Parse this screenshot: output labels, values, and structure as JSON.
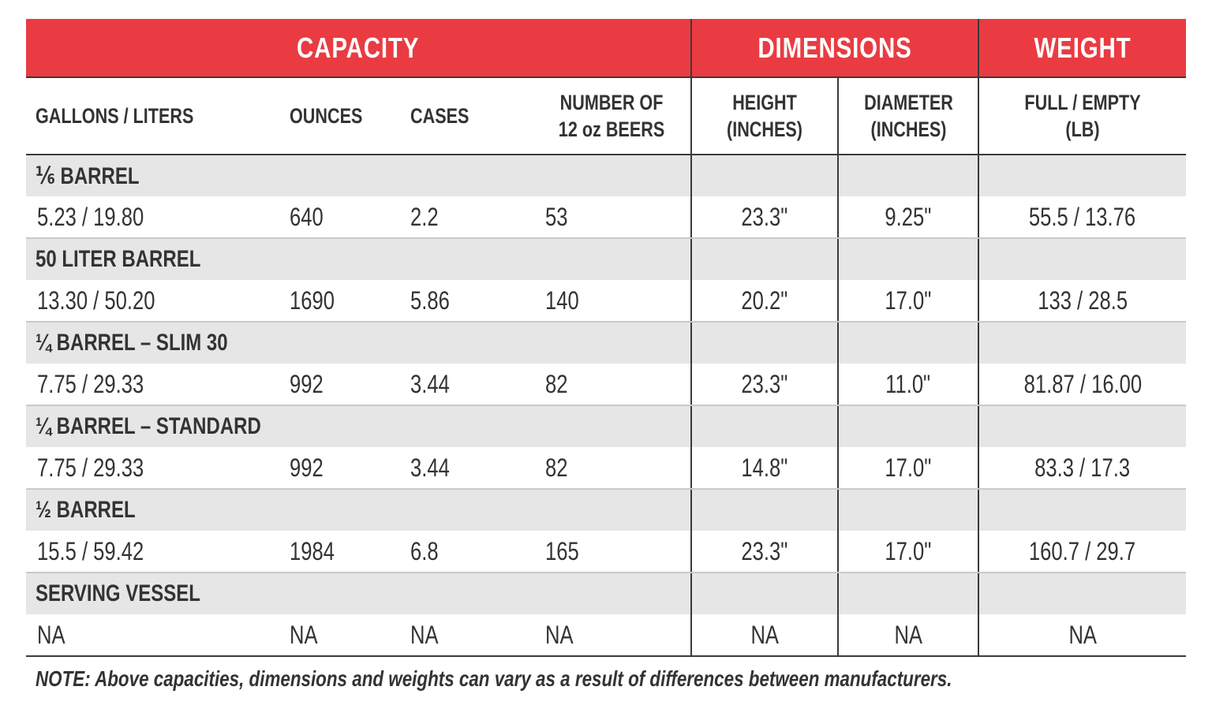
{
  "groups": {
    "capacity": "CAPACITY",
    "dimensions": "DIMENSIONS",
    "weight": "WEIGHT"
  },
  "columns": {
    "gallons_liters": "GALLONS / LITERS",
    "ounces": "OUNCES",
    "cases": "CASES",
    "beers_line1": "NUMBER OF",
    "beers_line2": "12 oz BEERS",
    "height_line1": "HEIGHT",
    "height_line2": "(INCHES)",
    "diameter_line1": "DIAMETER",
    "diameter_line2": "(INCHES)",
    "weight_line1": "FULL / EMPTY",
    "weight_line2": "(LB)"
  },
  "rows": [
    {
      "label": "⅙ BARREL",
      "gallons_liters": "5.23 / 19.80",
      "ounces": "640",
      "cases": "2.2",
      "beers": "53",
      "height": "23.3\"",
      "diameter": "9.25\"",
      "weight": "55.5 / 13.76"
    },
    {
      "label": "50 LITER BARREL",
      "gallons_liters": "13.30 / 50.20",
      "ounces": "1690",
      "cases": "5.86",
      "beers": "140",
      "height": "20.2\"",
      "diameter": "17.0\"",
      "weight": "133 / 28.5"
    },
    {
      "label": "¼ BARREL – SLIM 30",
      "gallons_liters": "7.75 / 29.33",
      "ounces": "992",
      "cases": "3.44",
      "beers": "82",
      "height": "23.3\"",
      "diameter": "11.0\"",
      "weight": "81.87 / 16.00"
    },
    {
      "label": "¼ BARREL – STANDARD",
      "gallons_liters": "7.75 / 29.33",
      "ounces": "992",
      "cases": "3.44",
      "beers": "82",
      "height": "14.8\"",
      "diameter": "17.0\"",
      "weight": "83.3 / 17.3"
    },
    {
      "label": "½ BARREL",
      "gallons_liters": "15.5 / 59.42",
      "ounces": "1984",
      "cases": "6.8",
      "beers": "165",
      "height": "23.3\"",
      "diameter": "17.0\"",
      "weight": "160.7 / 29.7"
    },
    {
      "label": "SERVING VESSEL",
      "gallons_liters": "NA",
      "ounces": "NA",
      "cases": "NA",
      "beers": "NA",
      "height": "NA",
      "diameter": "NA",
      "weight": "NA"
    }
  ],
  "note": "NOTE: Above capacities, dimensions and weights can vary as a result of differences between manufacturers.",
  "colors": {
    "header_red": "#ea3b42",
    "label_row_gray": "#e6e6e6",
    "rule": "#3a3a3a"
  }
}
